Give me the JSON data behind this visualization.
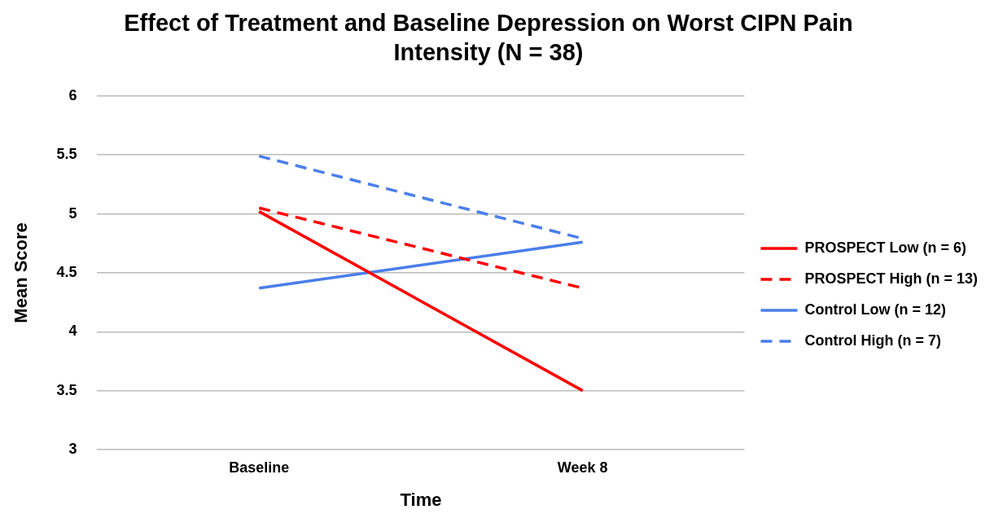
{
  "chart_data": {
    "type": "line",
    "title": "Effect of Treatment and Baseline Depression on Worst CIPN Pain Intensity (N = 38)",
    "xlabel": "Time",
    "ylabel": "Mean Score",
    "categories": [
      "Baseline",
      "Week 8"
    ],
    "series": [
      {
        "name": "PROSPECT Low (n = 6)",
        "color": "#ff0000",
        "values": [
          5.02,
          3.5
        ],
        "line_style": "solid"
      },
      {
        "name": "PROSPECT High (n = 13)",
        "color": "#ff0000",
        "values": [
          5.05,
          4.37
        ],
        "line_style": "dashed"
      },
      {
        "name": "Control Low (n = 12)",
        "color": "#4a7eea",
        "values": [
          4.37,
          4.76
        ],
        "line_style": "solid"
      },
      {
        "name": "Control High (n = 7)",
        "color": "#4a7eea",
        "values": [
          5.49,
          4.79
        ],
        "line_style": "dashed"
      }
    ],
    "ylim": [
      3,
      6
    ],
    "yticks": [
      3,
      3.5,
      4,
      4.5,
      5,
      5.5,
      6
    ],
    "grid": "y",
    "legend": "right",
    "marker": "none"
  }
}
